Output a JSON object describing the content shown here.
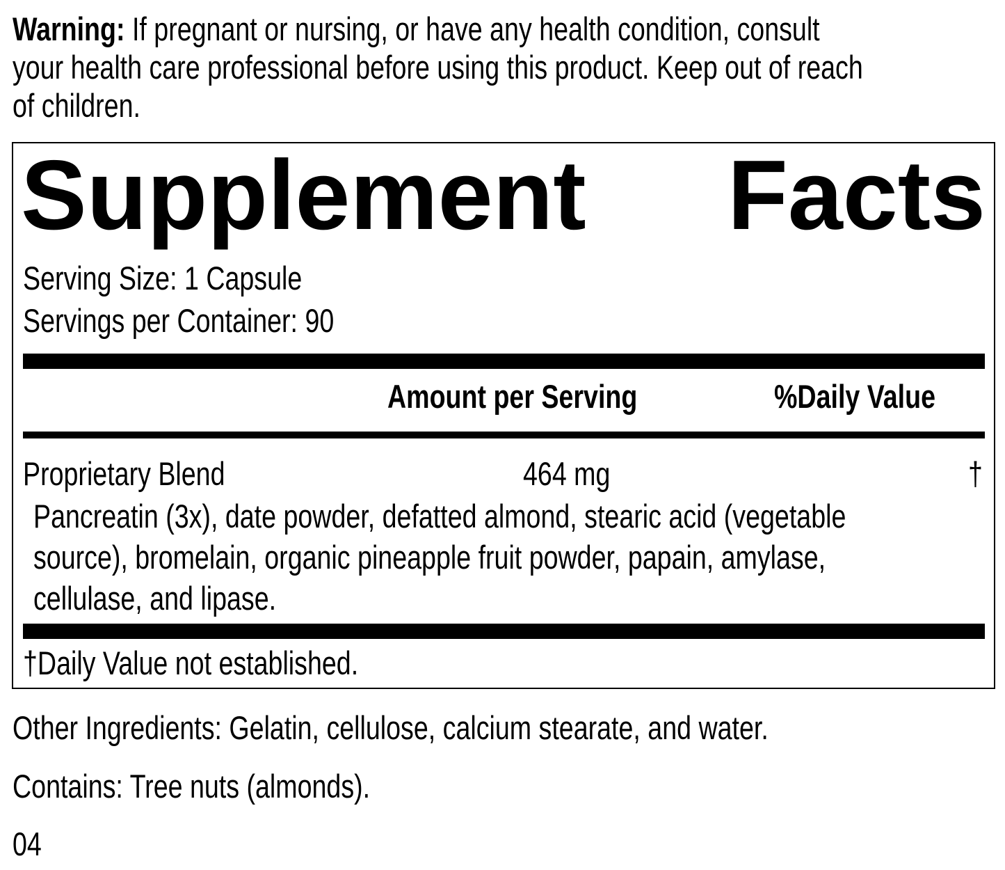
{
  "warning": {
    "label": "Warning:",
    "line1": " If pregnant or nursing, or have any health condition, consult",
    "line2": "your health care professional before using this product. Keep out of reach",
    "line3": "of children."
  },
  "facts": {
    "title_word1": "Supplement",
    "title_word2": "Facts",
    "serving_size": "Serving Size: 1 Capsule",
    "servings_per_container": "Servings per Container: 90",
    "header_amount": "Amount per Serving",
    "header_dv": "%Daily Value",
    "rows": [
      {
        "name": "Proprietary Blend",
        "amount": "464 mg",
        "dv": "†"
      }
    ],
    "blend_lines": [
      "Pancreatin (3x), date powder, defatted almond, stearic acid (vegetable",
      "source), bromelain, organic pineapple fruit powder, papain, amylase,",
      "cellulase, and lipase."
    ],
    "footnote": "†Daily Value not established."
  },
  "other_ingredients": "Other Ingredients: Gelatin, cellulose, calcium stearate, and water.",
  "contains": "Contains: Tree nuts (almonds).",
  "code": "04"
}
